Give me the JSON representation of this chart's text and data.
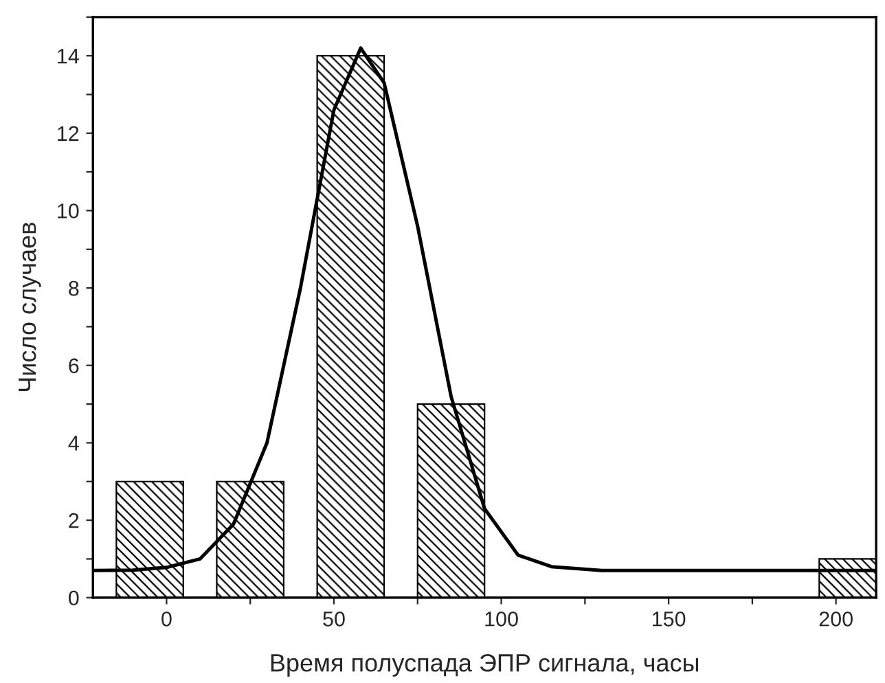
{
  "chart_data": {
    "type": "bar",
    "xlabel": "Время полуспада ЭПР сигнала, часы",
    "ylabel": "Число случаев",
    "series": [
      {
        "color": "#000000",
        "x": [
          -5,
          25,
          55,
          85,
          205
        ],
        "values": [
          3,
          3,
          14,
          5,
          1
        ]
      },
      {
        "type": "line",
        "color": "#000000",
        "x": [
          -22,
          -10,
          0,
          10,
          20,
          30,
          40,
          50,
          58,
          65,
          75,
          85,
          95,
          105,
          115,
          130,
          212
        ],
        "values": [
          0.7,
          0.71,
          0.78,
          1.0,
          1.9,
          4.0,
          8.0,
          12.6,
          14.2,
          13.3,
          9.6,
          5.2,
          2.3,
          1.1,
          0.8,
          0.7,
          0.7
        ]
      }
    ],
    "xlim": [
      -22,
      212
    ],
    "xticks": [
      0,
      {
        "value": 25,
        "label": null
      },
      50,
      {
        "value": 75,
        "label": null
      },
      100,
      {
        "value": 125,
        "label": null
      },
      150,
      {
        "value": 175,
        "label": null
      },
      200
    ],
    "ylim": [
      0,
      15
    ],
    "yticks": [
      0,
      {
        "value": 1,
        "label": null
      },
      2,
      {
        "value": 3,
        "label": null
      },
      4,
      {
        "value": 5,
        "label": null
      },
      6,
      {
        "value": 7,
        "label": null
      },
      8,
      {
        "value": 9,
        "label": null
      },
      10,
      {
        "value": 11,
        "label": null
      },
      12,
      {
        "value": 13,
        "label": null
      },
      14,
      {
        "value": 15,
        "label": null
      }
    ],
    "grid": false,
    "line_style": "solid"
  }
}
